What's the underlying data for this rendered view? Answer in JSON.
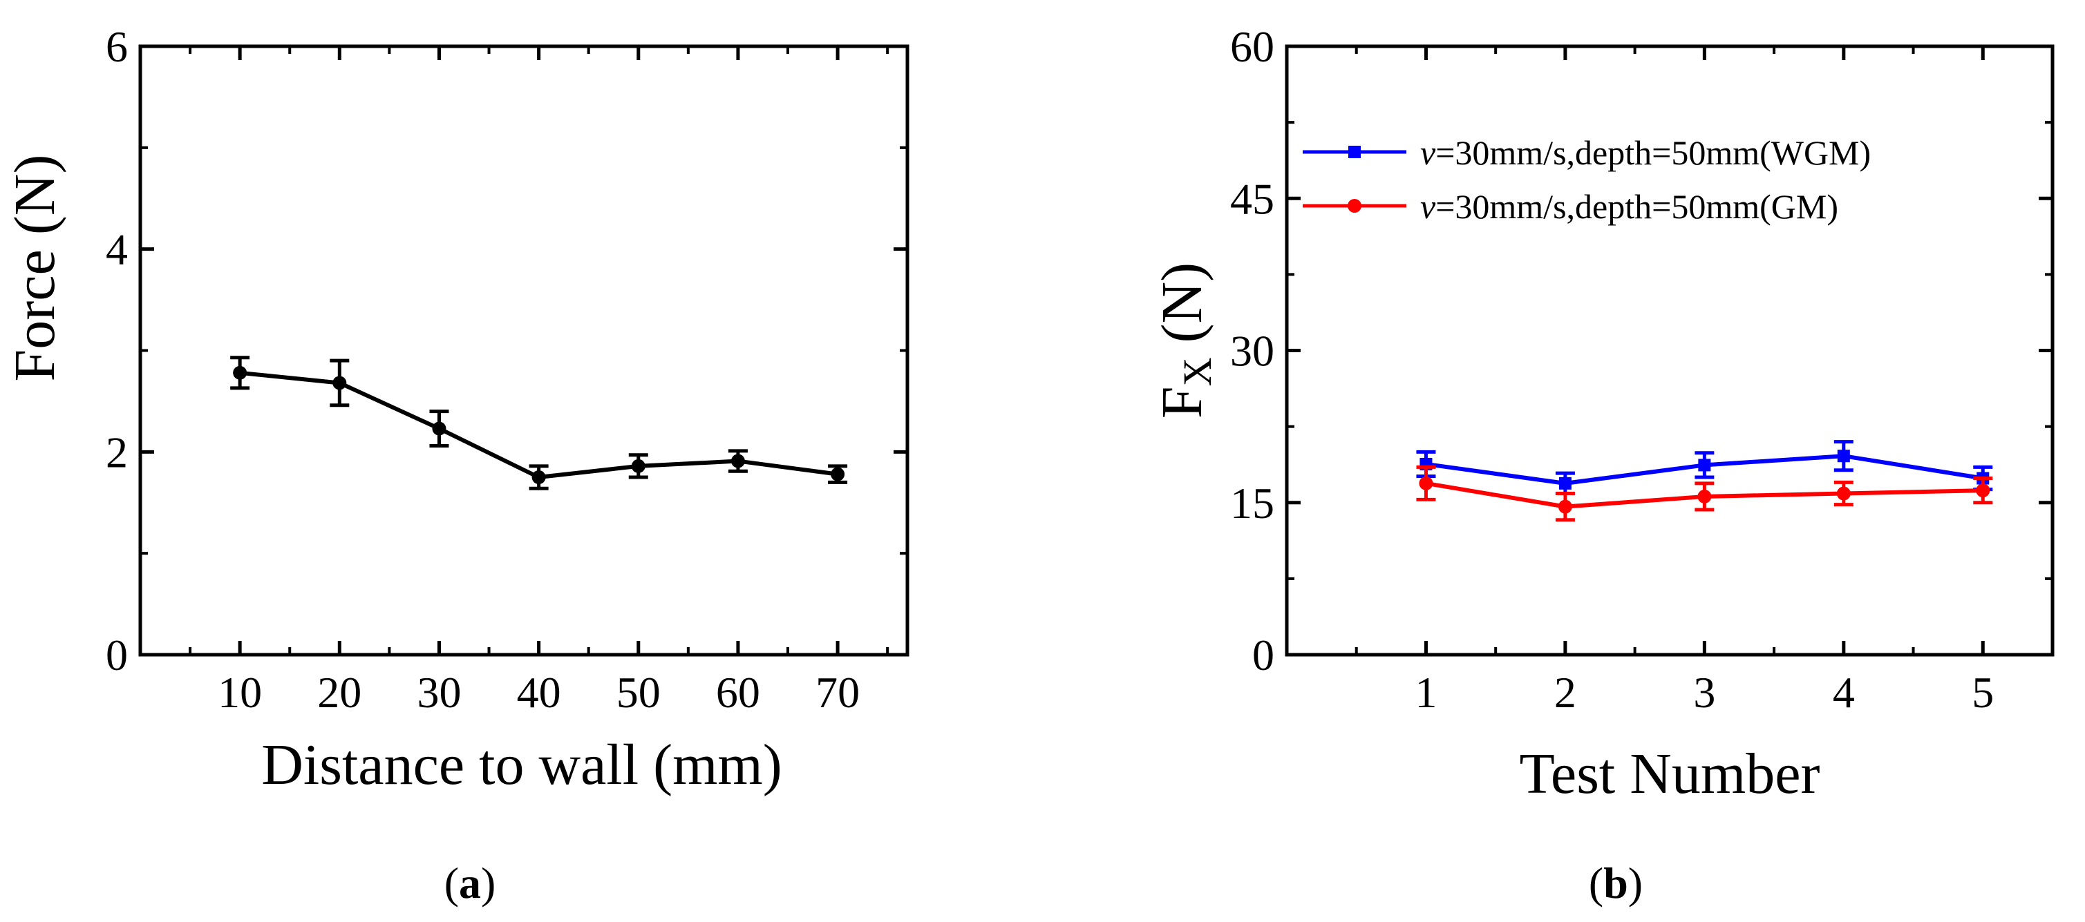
{
  "figure": {
    "panel_labels": [
      {
        "open": "(",
        "letter": "a",
        "close": ")"
      },
      {
        "open": "(",
        "letter": "b",
        "close": ")"
      }
    ]
  },
  "chart_data": [
    {
      "type": "line",
      "panel": "a",
      "title": "",
      "xlabel": "Distance to wall (mm)",
      "ylabel": "Force (N)",
      "xlim": [
        0,
        77
      ],
      "ylim": [
        0,
        6
      ],
      "xticks": [
        10,
        20,
        30,
        40,
        50,
        60,
        70
      ],
      "yticks": [
        0,
        2,
        4,
        6
      ],
      "grid": false,
      "legend": null,
      "series": [
        {
          "name": "Force",
          "color": "#000000",
          "marker": "circle",
          "x": [
            10,
            20,
            30,
            40,
            50,
            60,
            70
          ],
          "values": [
            2.78,
            2.68,
            2.23,
            1.75,
            1.86,
            1.91,
            1.78
          ],
          "errors": [
            0.15,
            0.22,
            0.17,
            0.11,
            0.11,
            0.1,
            0.08
          ]
        }
      ]
    },
    {
      "type": "line",
      "panel": "b",
      "title": "",
      "xlabel": "Test Number",
      "ylabel_main": "F",
      "ylabel_sub": "X",
      "ylabel_unit": " (N)",
      "xlim": [
        0,
        5.5
      ],
      "ylim": [
        0,
        60
      ],
      "xticks": [
        1,
        2,
        3,
        4,
        5
      ],
      "yticks": [
        0,
        15,
        30,
        45,
        60
      ],
      "grid": false,
      "legend_position": "upper-left",
      "series": [
        {
          "name": "v=30mm/s,depth=50mm(WGM)",
          "legend_italic": "v",
          "legend_rest": "=30mm/s,depth=50mm(WGM)",
          "color": "#0000ff",
          "marker": "square",
          "x": [
            1,
            2,
            3,
            4,
            5
          ],
          "values": [
            18.8,
            16.9,
            18.7,
            19.6,
            17.4
          ],
          "errors": [
            1.2,
            1.0,
            1.2,
            1.4,
            1.1
          ]
        },
        {
          "name": "v=30mm/s,depth=50mm(GM)",
          "legend_italic": "v",
          "legend_rest": "=30mm/s,depth=50mm(GM)",
          "color": "#ff0000",
          "marker": "circle",
          "x": [
            1,
            2,
            3,
            4,
            5
          ],
          "values": [
            16.9,
            14.6,
            15.6,
            15.9,
            16.2
          ],
          "errors": [
            1.6,
            1.3,
            1.3,
            1.1,
            1.2
          ]
        }
      ]
    }
  ]
}
